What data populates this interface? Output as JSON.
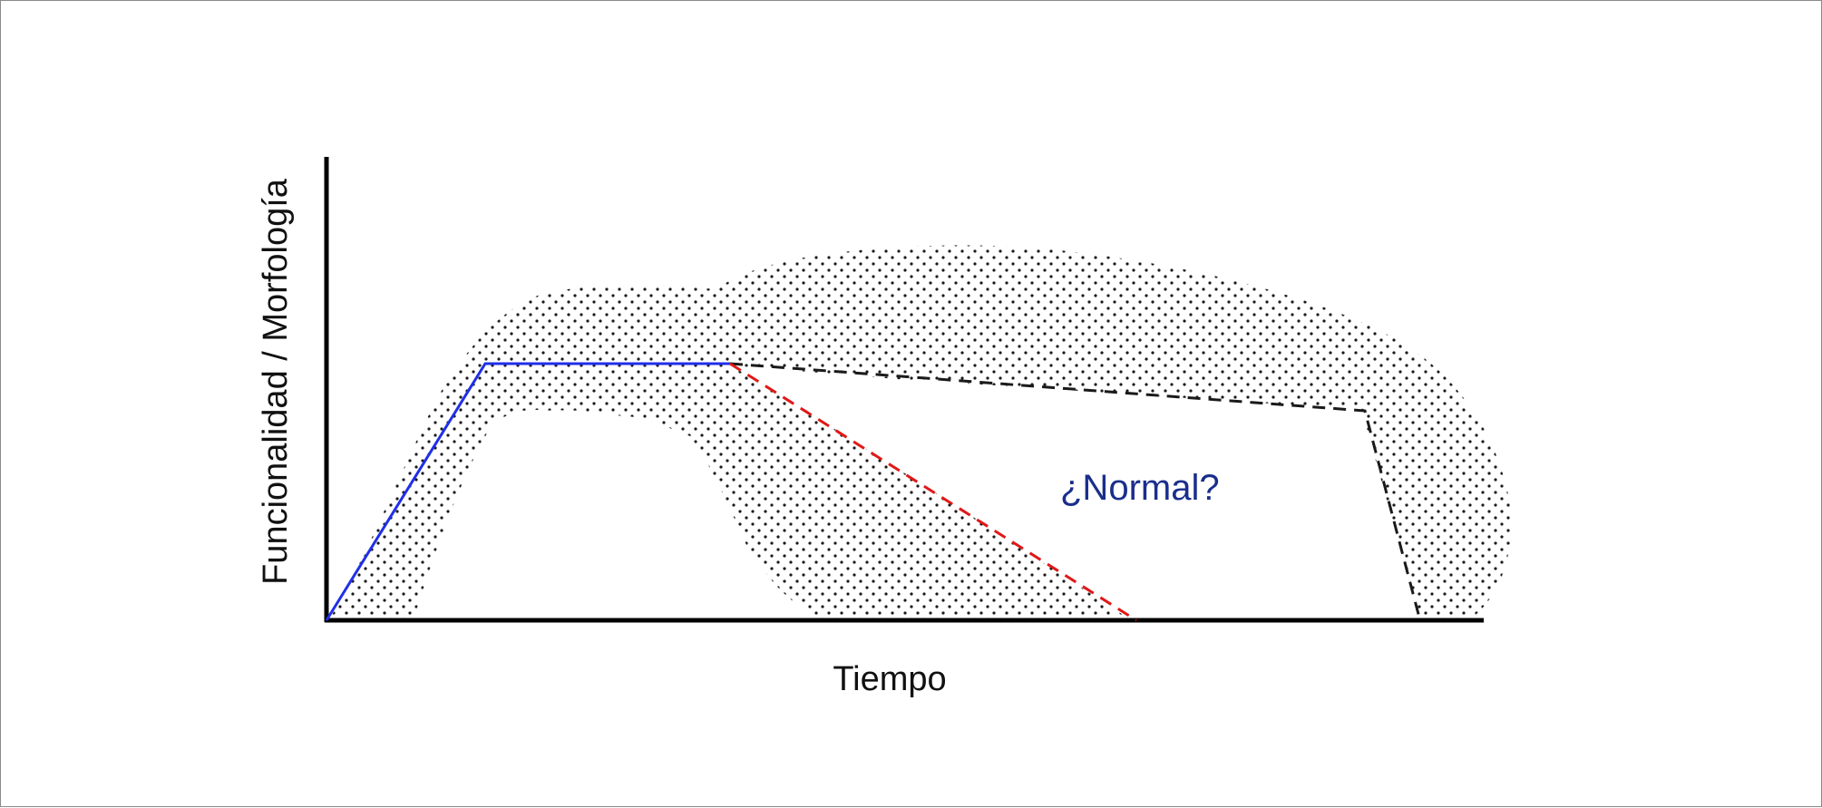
{
  "figure": {
    "y_axis_label": "Funcionalidad / Morfología",
    "x_axis_label": "Tiempo",
    "zone_label": "¿Normal?",
    "colors": {
      "growth_line": "#1f2fe8",
      "gradual_decline_line": "#1a1a1a",
      "rapid_decline_line": "#e01818",
      "zone_label": "#1a2e8c",
      "axes": "#000000",
      "stipple": "#1a1a1a"
    }
  }
}
